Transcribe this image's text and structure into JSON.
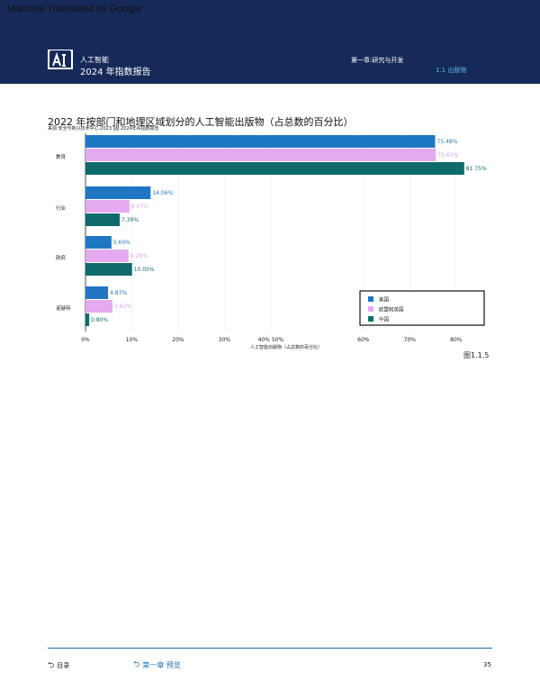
{
  "watermark": "Machine Translated by Google",
  "header": {
    "logo_text": "AI",
    "report_name": "人工智能",
    "report_year": "2024 年指数报告",
    "chapter": "第一章:研究与开发",
    "section": "1.1 出版物"
  },
  "chart_data": {
    "type": "bar",
    "orientation": "horizontal",
    "title": "2022 年按部门和地理区域划分的人工智能出版物（占总数的百分比）",
    "source": "来源:安全与新兴技术中心,2023 |图:2024年AI指数报告",
    "xlabel": "人工智能出版物（占总数的百分比）",
    "xlim": [
      0,
      90
    ],
    "xticks": [
      "0%",
      "10%",
      "20%",
      "30%",
      "40% 50%",
      "60%",
      "70%",
      "80%"
    ],
    "xtick_values": [
      0,
      10,
      20,
      30,
      40,
      60,
      70,
      80
    ],
    "grid": true,
    "legend_position": "bottom-right",
    "categories": [
      "教育",
      "行业",
      "政府",
      "诺赫特"
    ],
    "series": [
      {
        "name": "美国",
        "color": "#1f77c4",
        "label_color": "#1f77c4",
        "values": [
          75.48,
          14.06,
          5.6,
          4.87
        ]
      },
      {
        "name": "欧盟和英国",
        "color": "#e4aaf0",
        "label_color": "#dba4ec",
        "values": [
          75.63,
          9.47,
          9.28,
          5.82
        ]
      },
      {
        "name": "中国",
        "color": "#0f6b6b",
        "label_color": "#0f6b6b",
        "values": [
          81.75,
          7.39,
          10.05,
          0.8
        ]
      }
    ],
    "value_labels": [
      [
        "75.48%",
        "14.06%",
        "5.60%",
        "4.87%"
      ],
      [
        "75.63%",
        "9.47%",
        "9.28%",
        "5.82%"
      ],
      [
        "81.75%",
        "7.39%",
        "10.05%",
        "0.80%"
      ]
    ]
  },
  "figure_label": "图1.1.5",
  "footer": {
    "toc": "目录",
    "chapter_link": "第一章 预览",
    "page": "35"
  }
}
